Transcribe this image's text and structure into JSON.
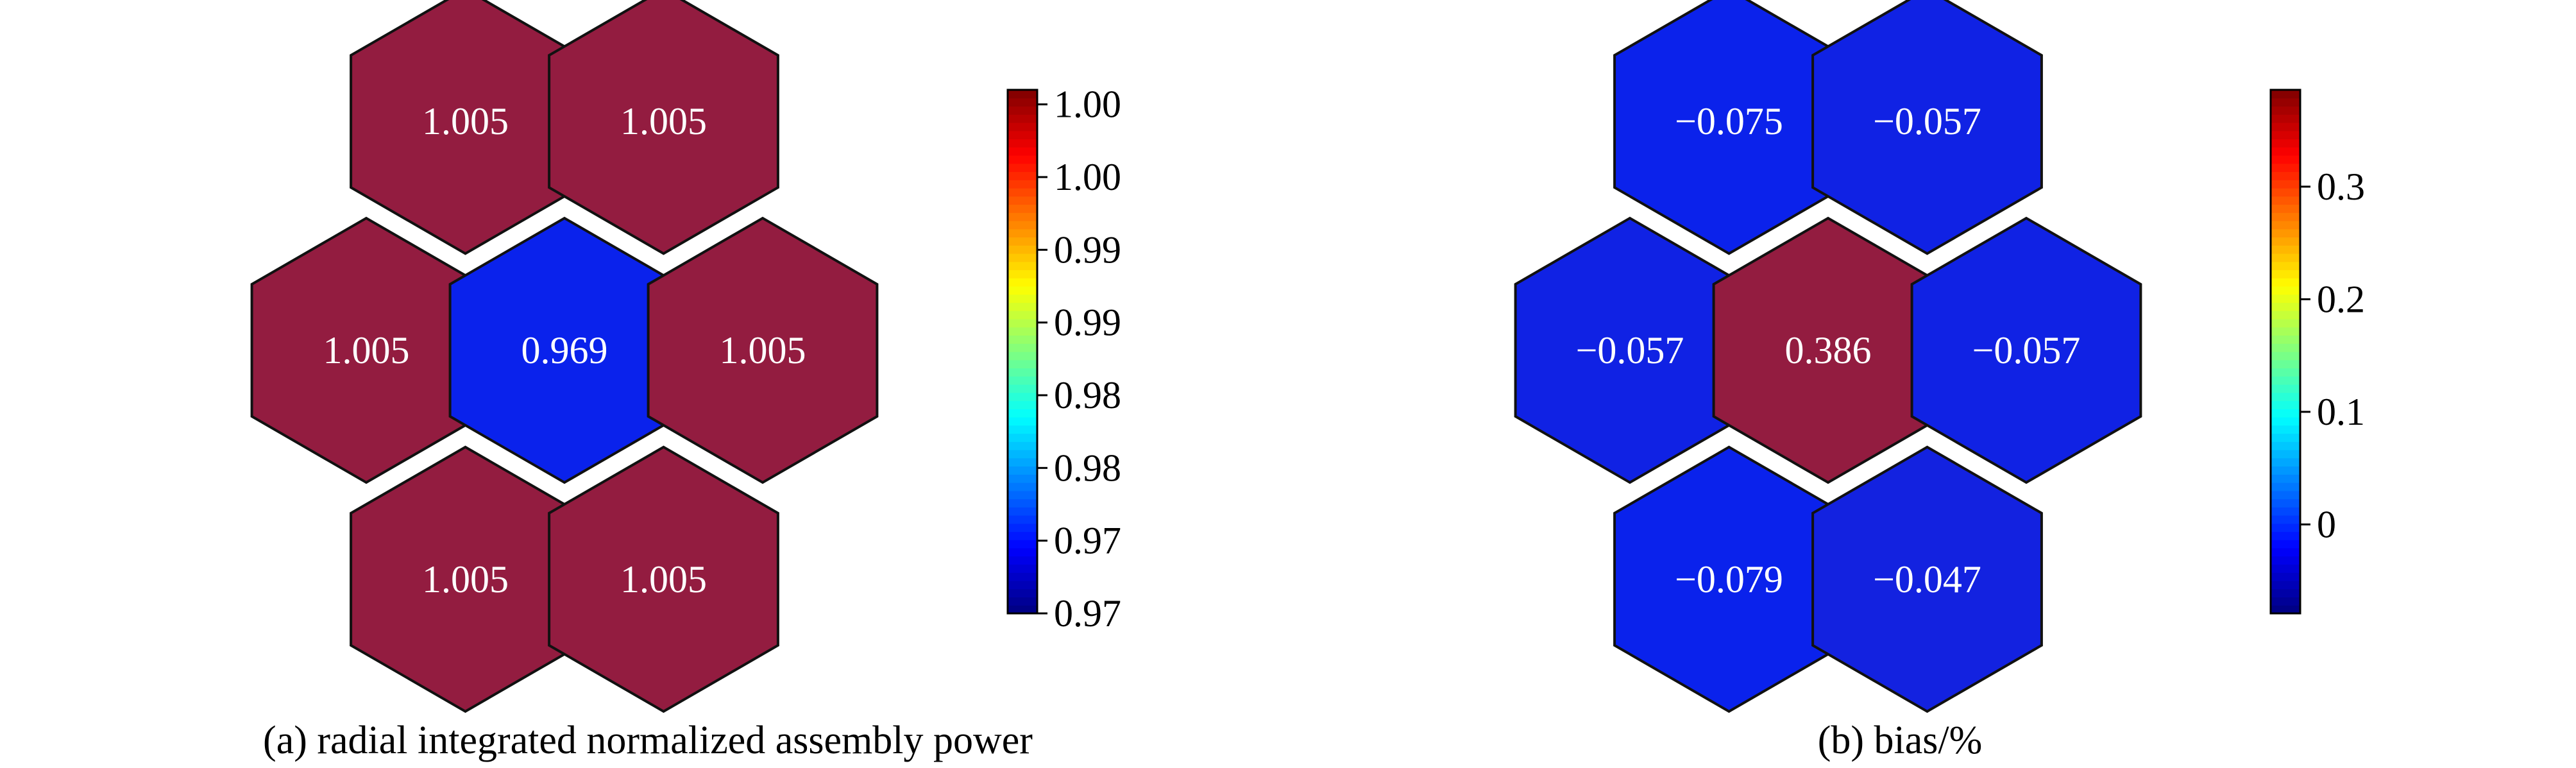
{
  "chart_data": [
    {
      "type": "heatmap",
      "layout": "hexagonal",
      "caption": "(a) radial integrated normalized assembly power",
      "cells": [
        {
          "value": 1.005,
          "label": "1.005",
          "ring": "outer",
          "slot": "top-left"
        },
        {
          "value": 1.005,
          "label": "1.005",
          "ring": "outer",
          "slot": "top-right"
        },
        {
          "value": 1.005,
          "label": "1.005",
          "ring": "outer",
          "slot": "left"
        },
        {
          "value": 0.969,
          "label": "0.969",
          "ring": "center",
          "slot": "center"
        },
        {
          "value": 1.005,
          "label": "1.005",
          "ring": "outer",
          "slot": "right"
        },
        {
          "value": 1.005,
          "label": "1.005",
          "ring": "outer",
          "slot": "bottom-left"
        },
        {
          "value": 1.005,
          "label": "1.005",
          "ring": "outer",
          "slot": "bottom-right"
        }
      ],
      "colorbar": {
        "colormap": "jet",
        "range": [
          0.969,
          1.005
        ],
        "ticks": [
          {
            "value": 0.969,
            "label": "0.97"
          },
          {
            "value": 0.974,
            "label": "0.97"
          },
          {
            "value": 0.979,
            "label": "0.98"
          },
          {
            "value": 0.984,
            "label": "0.98"
          },
          {
            "value": 0.989,
            "label": "0.99"
          },
          {
            "value": 0.994,
            "label": "0.99"
          },
          {
            "value": 0.999,
            "label": "1.00"
          },
          {
            "value": 1.004,
            "label": "1.00"
          }
        ]
      }
    },
    {
      "type": "heatmap",
      "layout": "hexagonal",
      "caption": "(b) bias/%",
      "cells": [
        {
          "value": -0.075,
          "label": "−0.075",
          "ring": "outer",
          "slot": "top-left"
        },
        {
          "value": -0.057,
          "label": "−0.057",
          "ring": "outer",
          "slot": "top-right"
        },
        {
          "value": -0.057,
          "label": "−0.057",
          "ring": "outer",
          "slot": "left"
        },
        {
          "value": 0.386,
          "label": "0.386",
          "ring": "center",
          "slot": "center"
        },
        {
          "value": -0.057,
          "label": "−0.057",
          "ring": "outer",
          "slot": "right"
        },
        {
          "value": -0.079,
          "label": "−0.079",
          "ring": "outer",
          "slot": "bottom-left"
        },
        {
          "value": -0.047,
          "label": "−0.047",
          "ring": "outer",
          "slot": "bottom-right"
        }
      ],
      "colorbar": {
        "colormap": "jet",
        "range": [
          -0.079,
          0.386
        ],
        "ticks": [
          {
            "value": 0.0,
            "label": "0"
          },
          {
            "value": 0.1,
            "label": "0.1"
          },
          {
            "value": 0.2,
            "label": "0.2"
          },
          {
            "value": 0.3,
            "label": "0.3"
          }
        ]
      }
    }
  ],
  "colors": {
    "high": "#931c40",
    "low": "#0a22ec",
    "cell_border": "#111111",
    "cell_text": "#ffffff"
  }
}
